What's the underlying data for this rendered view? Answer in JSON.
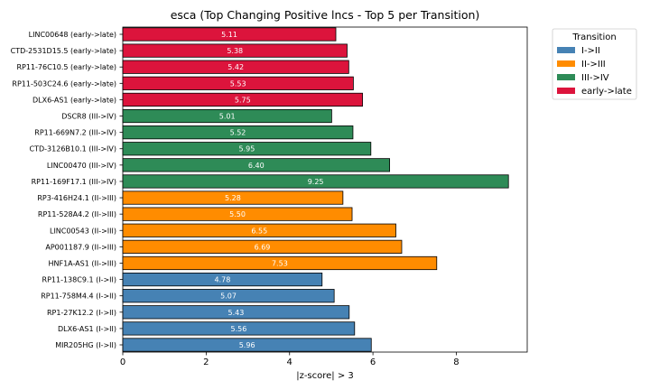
{
  "chart_data": {
    "type": "bar",
    "orientation": "horizontal",
    "title": "esca (Top Changing Positive lncs - Top 5 per Transition)",
    "xlabel": "|z-score| > 3",
    "ylabel": "",
    "xlim": [
      0,
      9.7
    ],
    "xticks": [
      0,
      2,
      4,
      6,
      8
    ],
    "grid": false,
    "legend_position": "outside top-right",
    "legend_title": "Transition",
    "series": [
      {
        "name": "I->II",
        "color": "#4682b4"
      },
      {
        "name": "II->III",
        "color": "#ff8c00"
      },
      {
        "name": "III->IV",
        "color": "#2e8b57"
      },
      {
        "name": "early->late",
        "color": "#dc143c"
      }
    ],
    "bars": [
      {
        "label": "LINC00648 (early->late)",
        "value": 5.11,
        "value_label": "5.11",
        "series": "early->late"
      },
      {
        "label": "CTD-2531D15.5 (early->late)",
        "value": 5.38,
        "value_label": "5.38",
        "series": "early->late"
      },
      {
        "label": "RP11-76C10.5 (early->late)",
        "value": 5.42,
        "value_label": "5.42",
        "series": "early->late"
      },
      {
        "label": "RP11-503C24.6 (early->late)",
        "value": 5.53,
        "value_label": "5.53",
        "series": "early->late"
      },
      {
        "label": "DLX6-AS1 (early->late)",
        "value": 5.75,
        "value_label": "5.75",
        "series": "early->late"
      },
      {
        "label": "DSCR8 (III->IV)",
        "value": 5.01,
        "value_label": "5.01",
        "series": "III->IV"
      },
      {
        "label": "RP11-669N7.2 (III->IV)",
        "value": 5.52,
        "value_label": "5.52",
        "series": "III->IV"
      },
      {
        "label": "CTD-3126B10.1 (III->IV)",
        "value": 5.95,
        "value_label": "5.95",
        "series": "III->IV"
      },
      {
        "label": "LINC00470 (III->IV)",
        "value": 6.4,
        "value_label": "6.40",
        "series": "III->IV"
      },
      {
        "label": "RP11-169F17.1 (III->IV)",
        "value": 9.25,
        "value_label": "9.25",
        "series": "III->IV"
      },
      {
        "label": "RP3-416H24.1 (II->III)",
        "value": 5.28,
        "value_label": "5.28",
        "series": "II->III"
      },
      {
        "label": "RP11-528A4.2 (II->III)",
        "value": 5.5,
        "value_label": "5.50",
        "series": "II->III"
      },
      {
        "label": "LINC00543 (II->III)",
        "value": 6.55,
        "value_label": "6.55",
        "series": "II->III"
      },
      {
        "label": "AP001187.9 (II->III)",
        "value": 6.69,
        "value_label": "6.69",
        "series": "II->III"
      },
      {
        "label": "HNF1A-AS1 (II->III)",
        "value": 7.53,
        "value_label": "7.53",
        "series": "II->III"
      },
      {
        "label": "RP11-138C9.1 (I->II)",
        "value": 4.78,
        "value_label": "4.78",
        "series": "I->II"
      },
      {
        "label": "RP11-758M4.4 (I->II)",
        "value": 5.07,
        "value_label": "5.07",
        "series": "I->II"
      },
      {
        "label": "RP1-27K12.2 (I->II)",
        "value": 5.43,
        "value_label": "5.43",
        "series": "I->II"
      },
      {
        "label": "DLX6-AS1 (I->II)",
        "value": 5.56,
        "value_label": "5.56",
        "series": "I->II"
      },
      {
        "label": "MIR205HG (I->II)",
        "value": 5.96,
        "value_label": "5.96",
        "series": "I->II"
      }
    ]
  }
}
